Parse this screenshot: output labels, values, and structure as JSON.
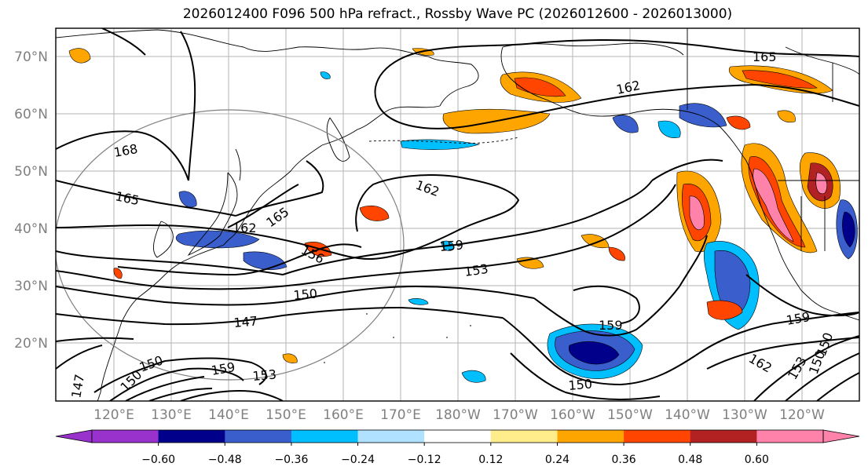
{
  "title": "2026012400 F096 500 hPa refract., Rossby Wave PC (2026012600 - 2026013000)",
  "lat_labels": [
    "70°N",
    "60°N",
    "50°N",
    "40°N",
    "30°N",
    "20°N"
  ],
  "lon_labels": [
    "120°E",
    "130°E",
    "140°E",
    "150°E",
    "160°E",
    "170°E",
    "180°W",
    "170°W",
    "160°W",
    "150°W",
    "140°W",
    "130°W",
    "120°W"
  ],
  "colorbar": {
    "colors": [
      "#9932cc",
      "#00008b",
      "#3a5fcd",
      "#00bfff",
      "#b0e2ff",
      "#ffffff",
      "#ffec8b",
      "#ffa500",
      "#ff4500",
      "#b22222",
      "#ff82ab"
    ],
    "tick_labels": [
      "−0.60",
      "−0.48",
      "−0.36",
      "−0.24",
      "−0.12",
      "0.12",
      "0.24",
      "0.36",
      "0.48",
      "0.60"
    ]
  },
  "contour_labels": [
    "165",
    "162",
    "168",
    "165",
    "162",
    "165",
    "162",
    "156",
    "159",
    "153",
    "150",
    "147",
    "159",
    "150",
    "159",
    "162",
    "150",
    "153",
    "159",
    "150",
    "153",
    "147",
    "150",
    "150"
  ],
  "colors": {
    "gridline": "#b3b3b3",
    "axis_label": "#808080",
    "contour": "#000000",
    "circle": "#808080"
  }
}
